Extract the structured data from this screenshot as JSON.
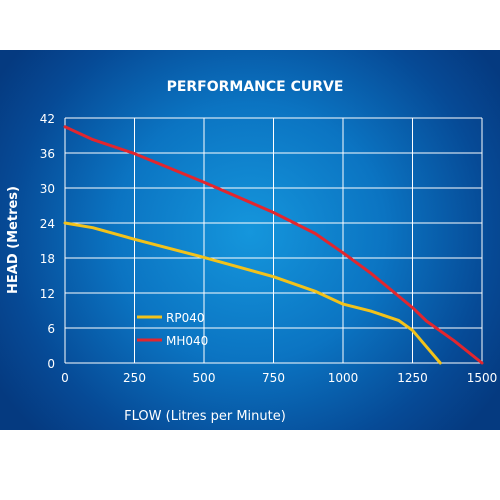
{
  "chart_data": {
    "type": "line",
    "title": "PERFORMANCE CURVE",
    "xlabel": "FLOW (Litres per Minute)",
    "ylabel": "HEAD (Metres)",
    "xlim": [
      0,
      1500
    ],
    "ylim": [
      0,
      42
    ],
    "xticks": [
      0,
      250,
      500,
      750,
      1000,
      1250,
      1500
    ],
    "yticks": [
      0,
      6,
      12,
      18,
      24,
      30,
      36,
      42
    ],
    "grid": true,
    "legend_position": "lower-left",
    "series": [
      {
        "name": "RP040",
        "color": "#f2c21b",
        "points": [
          [
            0,
            24
          ],
          [
            100,
            23.2
          ],
          [
            250,
            21.2
          ],
          [
            500,
            18.1
          ],
          [
            750,
            14.8
          ],
          [
            900,
            12.3
          ],
          [
            1000,
            10.1
          ],
          [
            1100,
            8.9
          ],
          [
            1200,
            7.3
          ],
          [
            1250,
            5.6
          ],
          [
            1300,
            2.8
          ],
          [
            1350,
            0
          ]
        ]
      },
      {
        "name": "MH040",
        "color": "#e2262e",
        "points": [
          [
            0,
            40.5
          ],
          [
            100,
            38.3
          ],
          [
            250,
            35.9
          ],
          [
            500,
            31.0
          ],
          [
            750,
            25.8
          ],
          [
            900,
            22.2
          ],
          [
            1000,
            18.9
          ],
          [
            1100,
            15.4
          ],
          [
            1250,
            9.5
          ],
          [
            1300,
            7.2
          ],
          [
            1400,
            3.8
          ],
          [
            1500,
            0
          ]
        ]
      }
    ]
  }
}
